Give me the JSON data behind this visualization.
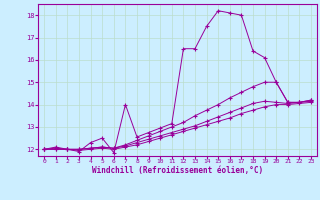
{
  "title": "",
  "xlabel": "Windchill (Refroidissement éolien,°C)",
  "bg_color": "#cceeff",
  "grid_color": "#bbddcc",
  "line_color": "#990099",
  "xlim": [
    -0.5,
    23.5
  ],
  "ylim": [
    11.7,
    18.5
  ],
  "xticks": [
    0,
    1,
    2,
    3,
    4,
    5,
    6,
    7,
    8,
    9,
    10,
    11,
    12,
    13,
    14,
    15,
    16,
    17,
    18,
    19,
    20,
    21,
    22,
    23
  ],
  "yticks": [
    12,
    13,
    14,
    15,
    16,
    17,
    18
  ],
  "curve1_x": [
    0,
    1,
    2,
    3,
    4,
    5,
    6,
    7,
    8,
    9,
    10,
    11,
    12,
    13,
    14,
    15,
    16,
    17,
    18,
    19,
    20,
    21,
    22,
    23
  ],
  "curve1_y": [
    12.0,
    12.1,
    12.0,
    11.9,
    12.3,
    12.5,
    11.85,
    14.0,
    12.55,
    12.75,
    12.95,
    13.15,
    16.5,
    16.5,
    17.5,
    18.2,
    18.1,
    18.0,
    16.4,
    16.1,
    15.0,
    14.1,
    14.1,
    14.2
  ],
  "curve2_x": [
    0,
    1,
    2,
    3,
    4,
    5,
    6,
    7,
    8,
    9,
    10,
    11,
    12,
    13,
    14,
    15,
    16,
    17,
    18,
    19,
    20,
    21,
    22,
    23
  ],
  "curve2_y": [
    12.0,
    12.05,
    12.0,
    12.0,
    12.05,
    12.1,
    12.05,
    12.2,
    12.4,
    12.6,
    12.8,
    13.0,
    13.2,
    13.5,
    13.75,
    14.0,
    14.3,
    14.55,
    14.8,
    15.0,
    15.0,
    14.1,
    14.1,
    14.2
  ],
  "curve3_x": [
    0,
    1,
    2,
    3,
    4,
    5,
    6,
    7,
    8,
    9,
    10,
    11,
    12,
    13,
    14,
    15,
    16,
    17,
    18,
    19,
    20,
    21,
    22,
    23
  ],
  "curve3_y": [
    12.0,
    12.0,
    12.0,
    12.0,
    12.05,
    12.1,
    12.05,
    12.15,
    12.3,
    12.45,
    12.6,
    12.75,
    12.9,
    13.05,
    13.25,
    13.45,
    13.65,
    13.85,
    14.05,
    14.15,
    14.1,
    14.05,
    14.1,
    14.15
  ],
  "curve4_x": [
    0,
    1,
    2,
    3,
    4,
    5,
    6,
    7,
    8,
    9,
    10,
    11,
    12,
    13,
    14,
    15,
    16,
    17,
    18,
    19,
    20,
    21,
    22,
    23
  ],
  "curve4_y": [
    12.0,
    12.0,
    12.0,
    11.95,
    12.0,
    12.05,
    12.0,
    12.1,
    12.2,
    12.35,
    12.5,
    12.65,
    12.8,
    12.95,
    13.1,
    13.25,
    13.4,
    13.6,
    13.75,
    13.9,
    14.0,
    14.0,
    14.05,
    14.1
  ]
}
